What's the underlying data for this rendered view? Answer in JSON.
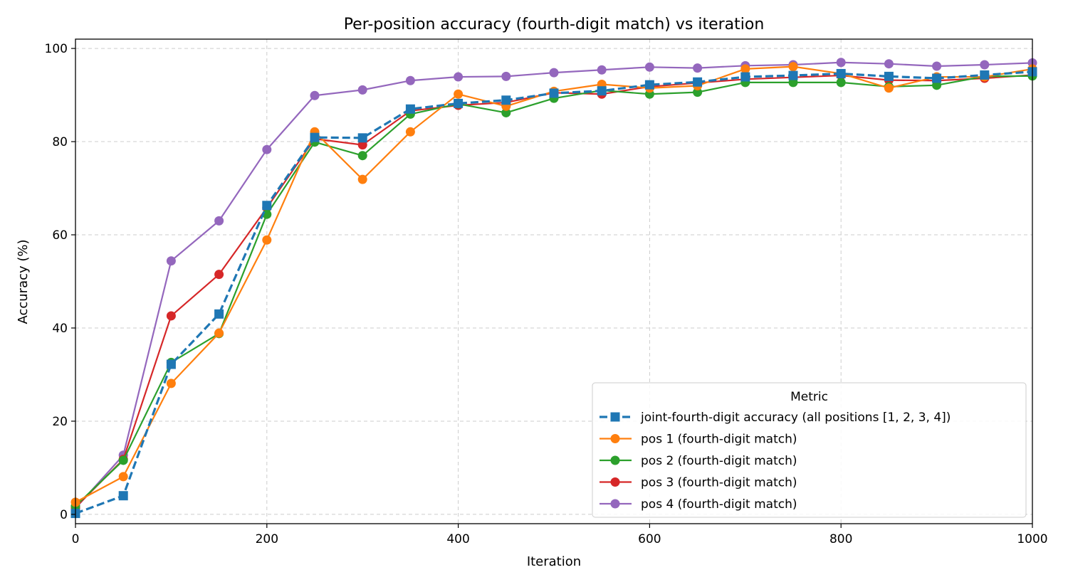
{
  "chart_data": {
    "type": "line",
    "title": "Per-position accuracy (fourth-digit match) vs iteration",
    "xlabel": "Iteration",
    "ylabel": "Accuracy (%)",
    "xlim": [
      0,
      1000
    ],
    "ylim": [
      -2,
      102
    ],
    "xticks": [
      0,
      200,
      400,
      600,
      800,
      1000
    ],
    "yticks": [
      0,
      20,
      40,
      60,
      80,
      100
    ],
    "grid": true,
    "legend": {
      "title": "Metric",
      "placement": "lower-right"
    },
    "x": [
      0,
      50,
      100,
      150,
      200,
      250,
      300,
      350,
      400,
      450,
      500,
      550,
      600,
      650,
      700,
      750,
      800,
      850,
      900,
      950,
      1000
    ],
    "series": [
      {
        "name": "joint-fourth-digit accuracy (all positions [1, 2, 3, 4])",
        "color": "#1f77b4",
        "marker": "square",
        "dashed": true,
        "values": [
          0.2,
          4.0,
          32.2,
          43.0,
          66.3,
          80.9,
          80.8,
          87.0,
          88.2,
          88.9,
          90.4,
          90.9,
          92.2,
          92.8,
          93.9,
          94.2,
          94.6,
          94.0,
          93.6,
          94.3,
          95.0
        ]
      },
      {
        "name": "pos 1 (fourth-digit match)",
        "color": "#ff7f0e",
        "marker": "circle",
        "dashed": false,
        "values": [
          2.6,
          8.1,
          28.1,
          38.9,
          58.9,
          82.1,
          71.9,
          82.1,
          90.2,
          87.6,
          90.8,
          92.3,
          91.5,
          92.0,
          95.6,
          96.1,
          94.6,
          91.5,
          93.9,
          93.9,
          95.6
        ]
      },
      {
        "name": "pos 2 (fourth-digit match)",
        "color": "#2ca02c",
        "marker": "circle",
        "dashed": false,
        "values": [
          1.8,
          11.6,
          32.6,
          38.8,
          64.4,
          79.9,
          77.0,
          85.9,
          88.1,
          86.2,
          89.3,
          91.0,
          90.2,
          90.6,
          92.7,
          92.7,
          92.7,
          91.8,
          92.1,
          94.0,
          94.1
        ]
      },
      {
        "name": "pos 3 (fourth-digit match)",
        "color": "#d62728",
        "marker": "circle",
        "dashed": false,
        "values": [
          1.5,
          11.8,
          42.6,
          51.5,
          65.8,
          80.6,
          79.3,
          86.6,
          87.8,
          88.4,
          90.5,
          90.2,
          91.8,
          92.6,
          93.4,
          93.8,
          94.2,
          93.2,
          93.1,
          93.6,
          94.3
        ]
      },
      {
        "name": "pos 4 (fourth-digit match)",
        "color": "#9467bd",
        "marker": "circle",
        "dashed": false,
        "values": [
          1.3,
          12.7,
          54.4,
          63.0,
          78.3,
          89.9,
          91.1,
          93.1,
          93.9,
          94.0,
          94.8,
          95.4,
          96.0,
          95.8,
          96.3,
          96.5,
          97.0,
          96.7,
          96.2,
          96.5,
          96.9
        ]
      }
    ]
  }
}
